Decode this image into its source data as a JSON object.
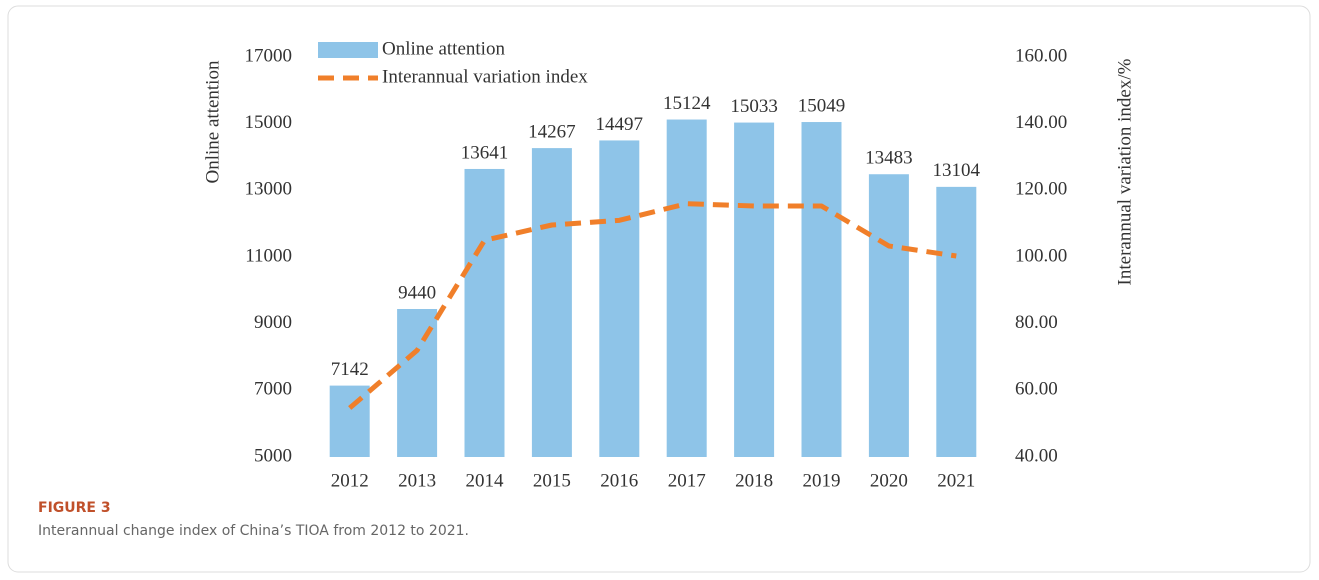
{
  "chart_data": {
    "type": "bar",
    "categories": [
      "2012",
      "2013",
      "2014",
      "2015",
      "2016",
      "2017",
      "2018",
      "2019",
      "2020",
      "2021"
    ],
    "series": [
      {
        "name": "Online attention",
        "color": "#8ec4e8",
        "values": [
          7142,
          9440,
          13641,
          14267,
          14497,
          15124,
          15033,
          15049,
          13483,
          13104
        ]
      },
      {
        "name": "Interannual variation index",
        "type": "line",
        "axis": "y2",
        "color": "#f07f2a",
        "values": [
          54.7,
          72,
          105,
          109.6,
          111,
          116,
          115.3,
          115.3,
          103.3,
          100.3
        ]
      }
    ],
    "ylabel": "Online attention",
    "y2label": "Interannual variation index/%",
    "ylim": [
      5000,
      17000
    ],
    "yticks": [
      5000,
      7000,
      9000,
      11000,
      13000,
      15000,
      17000
    ],
    "y2lim": [
      40,
      160
    ],
    "y2ticks": [
      {
        "value": 40,
        "label": "40.00"
      },
      {
        "value": 60,
        "label": "60.00"
      },
      {
        "value": 80,
        "label": "80.00"
      },
      {
        "value": 100,
        "label": "100.00"
      },
      {
        "value": 120,
        "label": "120.00"
      },
      {
        "value": 140,
        "label": "140.00"
      },
      {
        "value": 160,
        "label": "160.00"
      }
    ],
    "legend": "top-left",
    "grid": false
  },
  "figure": {
    "label": "FIGURE 3",
    "caption": "Interannual change index of China’s TIOA from 2012 to 2021."
  }
}
